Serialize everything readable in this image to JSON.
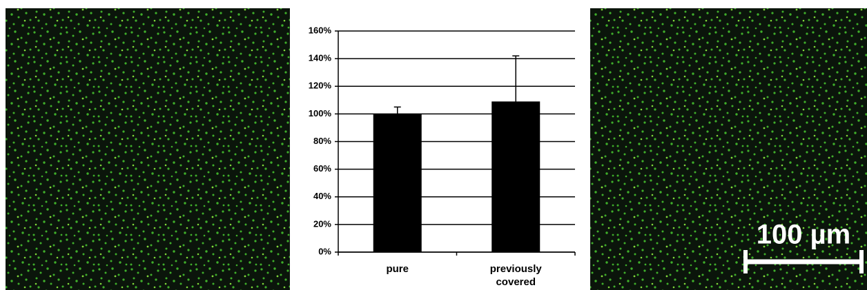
{
  "chart_data": {
    "type": "bar",
    "categories": [
      "pure",
      "previously covered"
    ],
    "values": [
      100,
      109
    ],
    "errors": [
      5,
      33
    ],
    "color": "#000000",
    "ylim": [
      0,
      160
    ],
    "yticks": [
      {
        "value": 0,
        "label": "0%"
      },
      {
        "value": 20,
        "label": "20%"
      },
      {
        "value": 40,
        "label": "40%"
      },
      {
        "value": 60,
        "label": "60%"
      },
      {
        "value": 80,
        "label": "80%"
      },
      {
        "value": 100,
        "label": "100%"
      },
      {
        "value": 120,
        "label": "120%"
      },
      {
        "value": 140,
        "label": "140%"
      },
      {
        "value": 160,
        "label": "160%"
      }
    ],
    "grid": true
  },
  "images": {
    "scale_bar_label": "100 µm"
  }
}
